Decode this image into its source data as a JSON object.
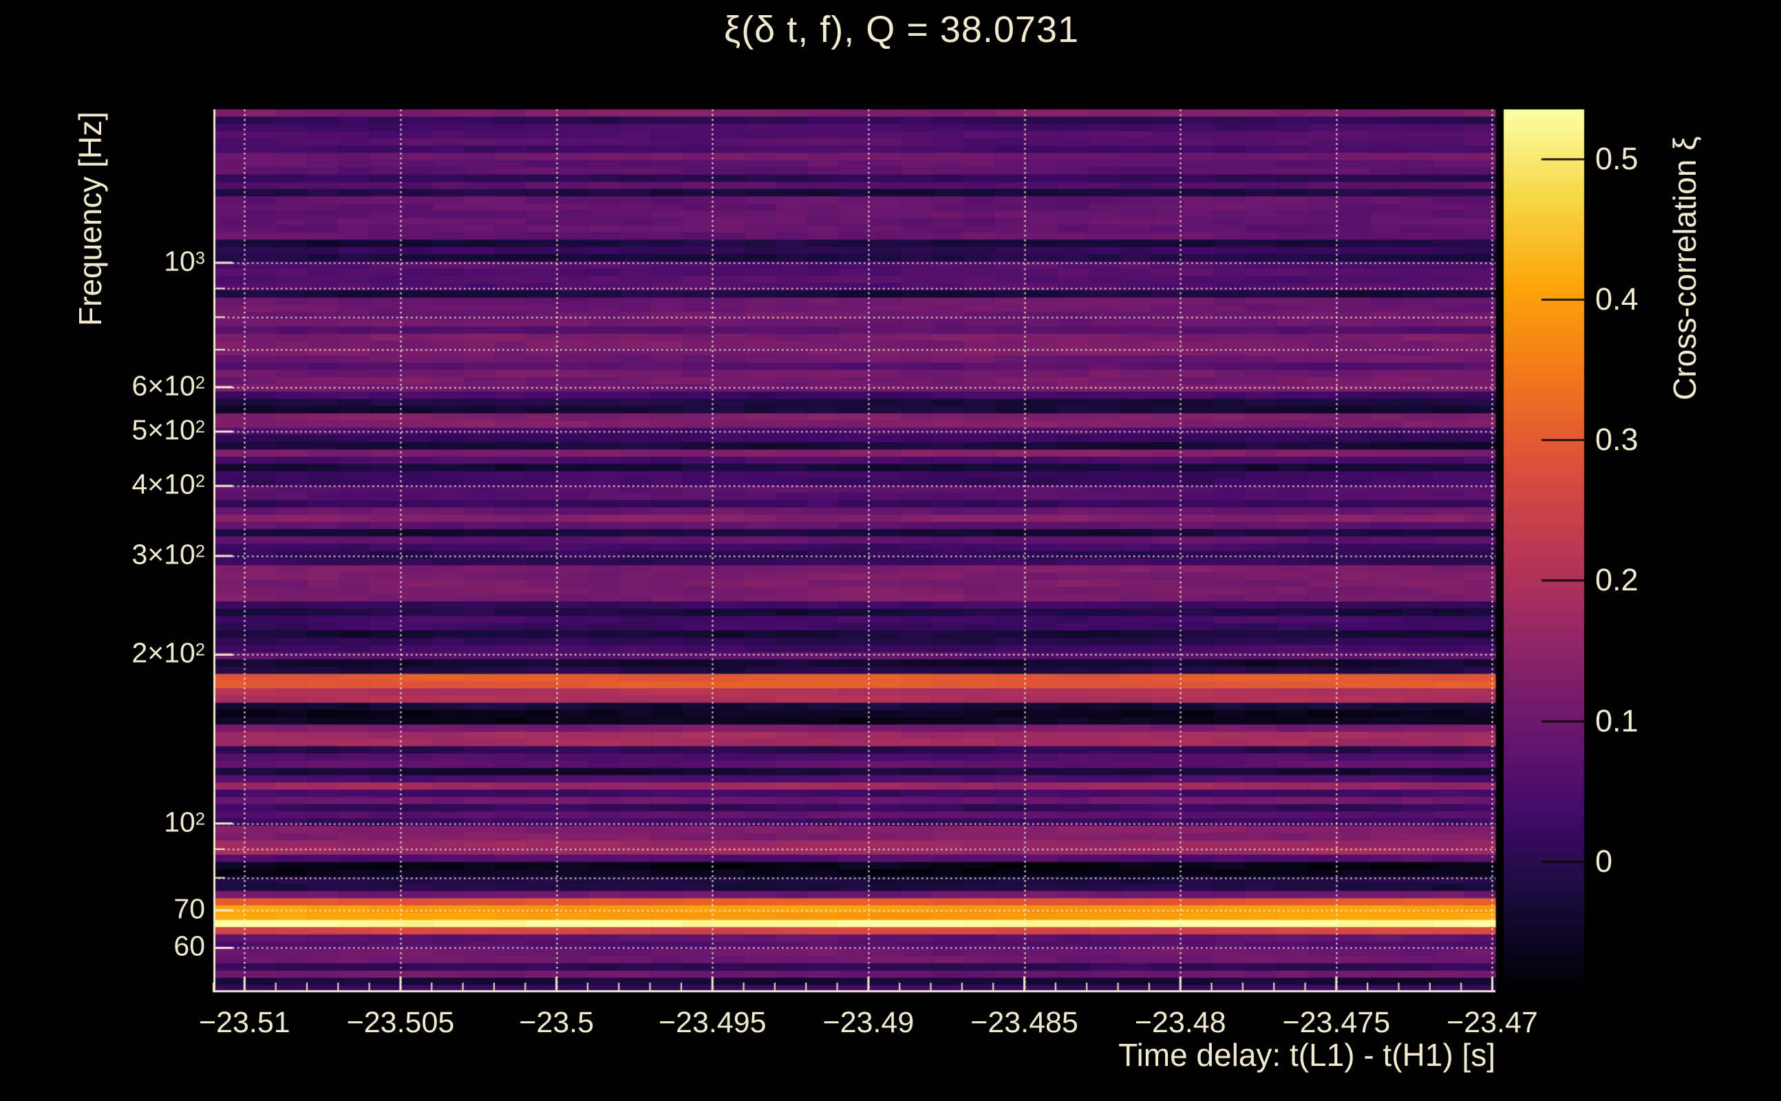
{
  "figure": {
    "background": "#000000",
    "text_color": "#f2ead0",
    "gridline_color": "#f5efd9"
  },
  "chart_data": {
    "type": "heatmap",
    "title": "ξ(δ t, f), Q = 38.0731",
    "q_value": 38.0731,
    "xlabel": "Time delay: t(L1) - t(H1) [s]",
    "ylabel": "Frequency [Hz]",
    "colorbar_label": "Cross-correlation ξ",
    "x_axis": {
      "min": -23.511,
      "max": -23.4699,
      "minor_tick_step": 0.001,
      "ticks": [
        {
          "value": -23.51,
          "label": "−23.51"
        },
        {
          "value": -23.505,
          "label": "−23.505"
        },
        {
          "value": -23.5,
          "label": "−23.5"
        },
        {
          "value": -23.495,
          "label": "−23.495"
        },
        {
          "value": -23.49,
          "label": "−23.49"
        },
        {
          "value": -23.485,
          "label": "−23.485"
        },
        {
          "value": -23.48,
          "label": "−23.48"
        },
        {
          "value": -23.475,
          "label": "−23.475"
        },
        {
          "value": -23.47,
          "label": "−23.47"
        }
      ]
    },
    "y_axis": {
      "scale": "log",
      "min": 50,
      "max": 1877,
      "ticks": [
        {
          "value": 1000,
          "label": "10^3"
        },
        {
          "value": 600,
          "label": "6×10^2"
        },
        {
          "value": 500,
          "label": "5×10^2"
        },
        {
          "value": 400,
          "label": "4×10^2"
        },
        {
          "value": 300,
          "label": "3×10^2"
        },
        {
          "value": 200,
          "label": "2×10^2"
        },
        {
          "value": 100,
          "label": "10^2"
        },
        {
          "value": 70,
          "label": "70"
        },
        {
          "value": 60,
          "label": "60"
        }
      ],
      "gridlines": [
        1000,
        900,
        800,
        700,
        600,
        500,
        400,
        300,
        200,
        100,
        90,
        80,
        70,
        60
      ]
    },
    "colorbar": {
      "min": -0.092,
      "max": 0.535,
      "ticks": [
        {
          "value": 0.5,
          "label": "0.5"
        },
        {
          "value": 0.4,
          "label": "0.4"
        },
        {
          "value": 0.3,
          "label": "0.3"
        },
        {
          "value": 0.2,
          "label": "0.2"
        },
        {
          "value": 0.1,
          "label": "0.1"
        },
        {
          "value": 0,
          "label": "0"
        }
      ]
    },
    "colormap": {
      "name": "inferno",
      "stops": [
        [
          0.0,
          [
            0,
            0,
            4
          ]
        ],
        [
          0.1,
          [
            22,
            11,
            57
          ]
        ],
        [
          0.2,
          [
            66,
            10,
            104
          ]
        ],
        [
          0.3,
          [
            106,
            23,
            110
          ]
        ],
        [
          0.4,
          [
            147,
            38,
            103
          ]
        ],
        [
          0.5,
          [
            188,
            55,
            84
          ]
        ],
        [
          0.6,
          [
            221,
            81,
            58
          ]
        ],
        [
          0.7,
          [
            243,
            120,
            25
          ]
        ],
        [
          0.8,
          [
            252,
            165,
            10
          ]
        ],
        [
          0.9,
          [
            246,
            215,
            70
          ]
        ],
        [
          1.0,
          [
            252,
            255,
            164
          ]
        ]
      ]
    },
    "grid": {
      "n_time_bins": 41,
      "n_freq_bins": 122
    },
    "bands": [
      {
        "f_lo": 1100,
        "f_hi": 1330,
        "xi": 0.085,
        "note": "diffuse plum haze above 1 kHz"
      },
      {
        "f_lo": 880,
        "f_hi": 1000,
        "xi": 0.06
      },
      {
        "f_lo": 780,
        "f_hi": 875,
        "xi": 0.1
      },
      {
        "f_lo": 690,
        "f_hi": 740,
        "xi": 0.12
      },
      {
        "f_lo": 595,
        "f_hi": 640,
        "xi": 0.11
      },
      {
        "f_lo": 515,
        "f_hi": 545,
        "xi": 0.13
      },
      {
        "f_lo": 250,
        "f_hi": 285,
        "xi": 0.12
      },
      {
        "f_lo": 188,
        "f_hi": 198,
        "xi": -0.04,
        "note": "dark band below 200 Hz"
      },
      {
        "f_lo": 175,
        "f_hi": 185,
        "xi": 0.3,
        "note": "orange band ~180 Hz"
      },
      {
        "f_lo": 166,
        "f_hi": 174,
        "xi": 0.2
      },
      {
        "f_lo": 151,
        "f_hi": 158,
        "xi": -0.06,
        "note": "near-black band ~155 Hz"
      },
      {
        "f_lo": 137,
        "f_hi": 146,
        "xi": 0.18,
        "note": "red band ~140 Hz"
      },
      {
        "f_lo": 114,
        "f_hi": 120,
        "xi": 0.17,
        "note": "red band ~117 Hz"
      },
      {
        "f_lo": 93,
        "f_hi": 98,
        "xi": 0.13
      },
      {
        "f_lo": 88.5,
        "f_hi": 92,
        "xi": 0.17,
        "note": "red band at 90 Hz gridline"
      },
      {
        "f_lo": 80.5,
        "f_hi": 86,
        "xi": -0.07,
        "note": "near-black band ~83 Hz"
      },
      {
        "f_lo": 70.5,
        "f_hi": 73.5,
        "xi": 0.3,
        "note": "orange band ~72 Hz"
      },
      {
        "f_lo": 68,
        "f_hi": 70.5,
        "xi": 0.4,
        "note": "amber band ~69 Hz"
      },
      {
        "f_lo": 65.5,
        "f_hi": 68,
        "xi": 0.53,
        "note": "brightest cream band ~67 Hz"
      },
      {
        "f_lo": 63,
        "f_hi": 65.5,
        "xi": 0.26,
        "note": "red band ~64 Hz"
      },
      {
        "f_lo": 57,
        "f_hi": 60,
        "xi": 0.1
      }
    ],
    "noise": {
      "seed": 11,
      "cell_jitter": 0.02,
      "row_drift": 0.012
    }
  }
}
